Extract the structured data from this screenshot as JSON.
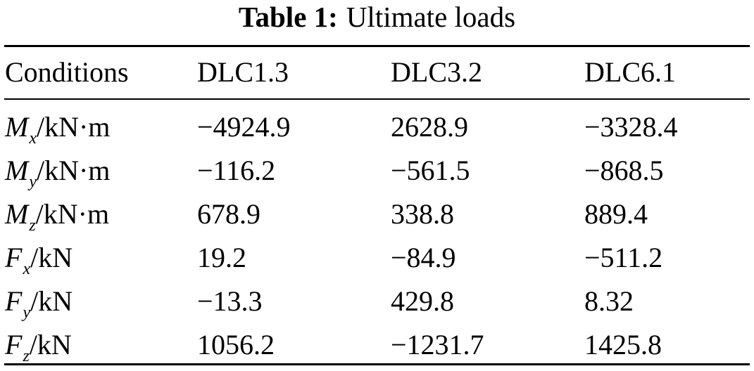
{
  "caption": {
    "label": "Table 1:",
    "title": "Ultimate loads"
  },
  "table": {
    "headers": [
      "Conditions",
      "DLC1.3",
      "DLC3.2",
      "DLC6.1"
    ],
    "rows": [
      {
        "symbol": "M",
        "subscript": "x",
        "unit": "/kN·m",
        "values": [
          "−4924.9",
          "2628.9",
          "−3328.4"
        ]
      },
      {
        "symbol": "M",
        "subscript": "y",
        "unit": "/kN·m",
        "values": [
          "−116.2",
          "−561.5",
          "−868.5"
        ]
      },
      {
        "symbol": "M",
        "subscript": "z",
        "unit": "/kN·m",
        "values": [
          "678.9",
          "338.8",
          "889.4"
        ]
      },
      {
        "symbol": "F",
        "subscript": "x",
        "unit": "/kN",
        "values": [
          "19.2",
          "−84.9",
          "−511.2"
        ]
      },
      {
        "symbol": "F",
        "subscript": "y",
        "unit": "/kN",
        "values": [
          "−13.3",
          "429.8",
          "8.32"
        ]
      },
      {
        "symbol": "F",
        "subscript": "z",
        "unit": "/kN",
        "values": [
          "1056.2",
          "−1231.7",
          "1425.8"
        ]
      }
    ]
  }
}
